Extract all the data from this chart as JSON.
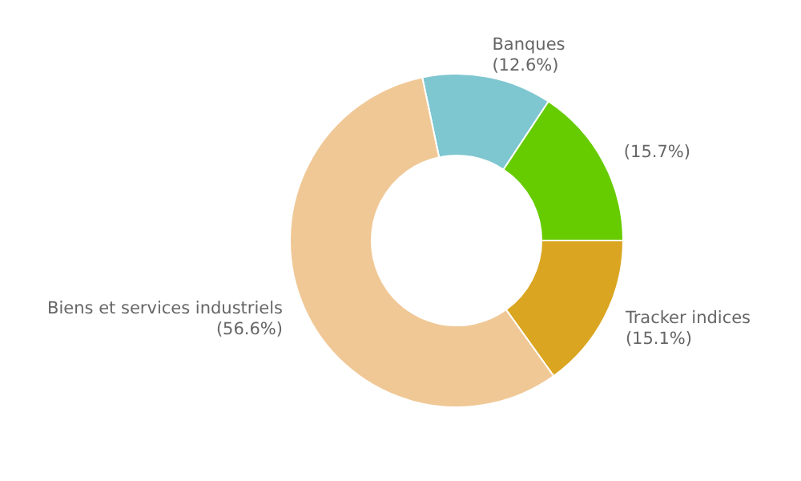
{
  "chart_data": {
    "type": "donut",
    "categories": [
      "Banques",
      null,
      "Tracker indices",
      "Biens et services industriels"
    ],
    "values": [
      12.6,
      15.7,
      15.1,
      56.6
    ],
    "colors": [
      "#7ec6d0",
      "#66cc00",
      "#daa520",
      "#f0c896"
    ],
    "value_labels": [
      "(12.6%)",
      "(15.7%)",
      "(15.1%)",
      "(56.6%)"
    ]
  }
}
